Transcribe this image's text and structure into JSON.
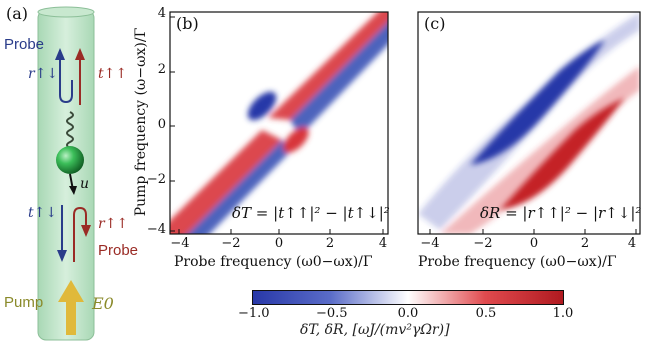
{
  "panels": {
    "a": {
      "letter": "(a)",
      "probe_top": "Probe",
      "r_label": "r↑↓",
      "t_label": "t↑↑",
      "u_label": "u",
      "t_bottom": "t↑↓",
      "r_bottom": "r↑↑",
      "probe_bottom": "Probe",
      "pump": "Pump",
      "e0": "E0",
      "colors": {
        "tube": "#bfe3c8",
        "probe_blue": "#2a3c8a",
        "probe_red": "#9a2b25",
        "pump": "#8a8a2a",
        "atom": "#2ea84a"
      }
    },
    "b": {
      "letter": "(b)",
      "formula": "δT = |t↑↑|² − |t↑↓|²"
    },
    "c": {
      "letter": "(c)",
      "formula": "δR = |r↑↑|² − |r↑↓|²"
    }
  },
  "axes": {
    "ylabel": "Pump frequency (ω−ωx)/Γ",
    "xlabel_b": "Probe frequency (ω0−ωx)/Γ",
    "xlabel_c": "Probe frequency (ω0−ωx)/Γ",
    "x_ticks": [
      "−4",
      "−2",
      "0",
      "2",
      "4"
    ],
    "y_ticks": [
      "4",
      "2",
      "0",
      "−2",
      "−4"
    ],
    "range": [
      -4,
      4
    ]
  },
  "colorbar": {
    "ticks": [
      "−1.0",
      "−0.5",
      "0.0",
      "0.5",
      "1.0"
    ],
    "label": "δT, δR, [ωJ/(mv²γΩr)]",
    "range": [
      -1.0,
      1.0
    ],
    "colors": {
      "min": "#2838a8",
      "mid": "#ffffff",
      "max": "#b01a20"
    }
  },
  "chart_data": [
    {
      "type": "heatmap",
      "title": "(b)",
      "xlabel": "Probe frequency (ω0−ωx)/Γ",
      "ylabel": "Pump frequency (ω−ωx)/Γ",
      "xlim": [
        -4,
        4
      ],
      "ylim": [
        -4,
        4
      ],
      "zlim": [
        -1.0,
        1.0
      ],
      "annotation": "δT = |t↑↑|² − |t↑↓|²"
    },
    {
      "type": "heatmap",
      "title": "(c)",
      "xlabel": "Probe frequency (ω0−ωx)/Γ",
      "ylabel": "Pump frequency (ω−ωx)/Γ",
      "xlim": [
        -4,
        4
      ],
      "ylim": [
        -4,
        4
      ],
      "zlim": [
        -1.0,
        1.0
      ],
      "annotation": "δR = |r↑↑|² − |r↑↓|²"
    }
  ]
}
